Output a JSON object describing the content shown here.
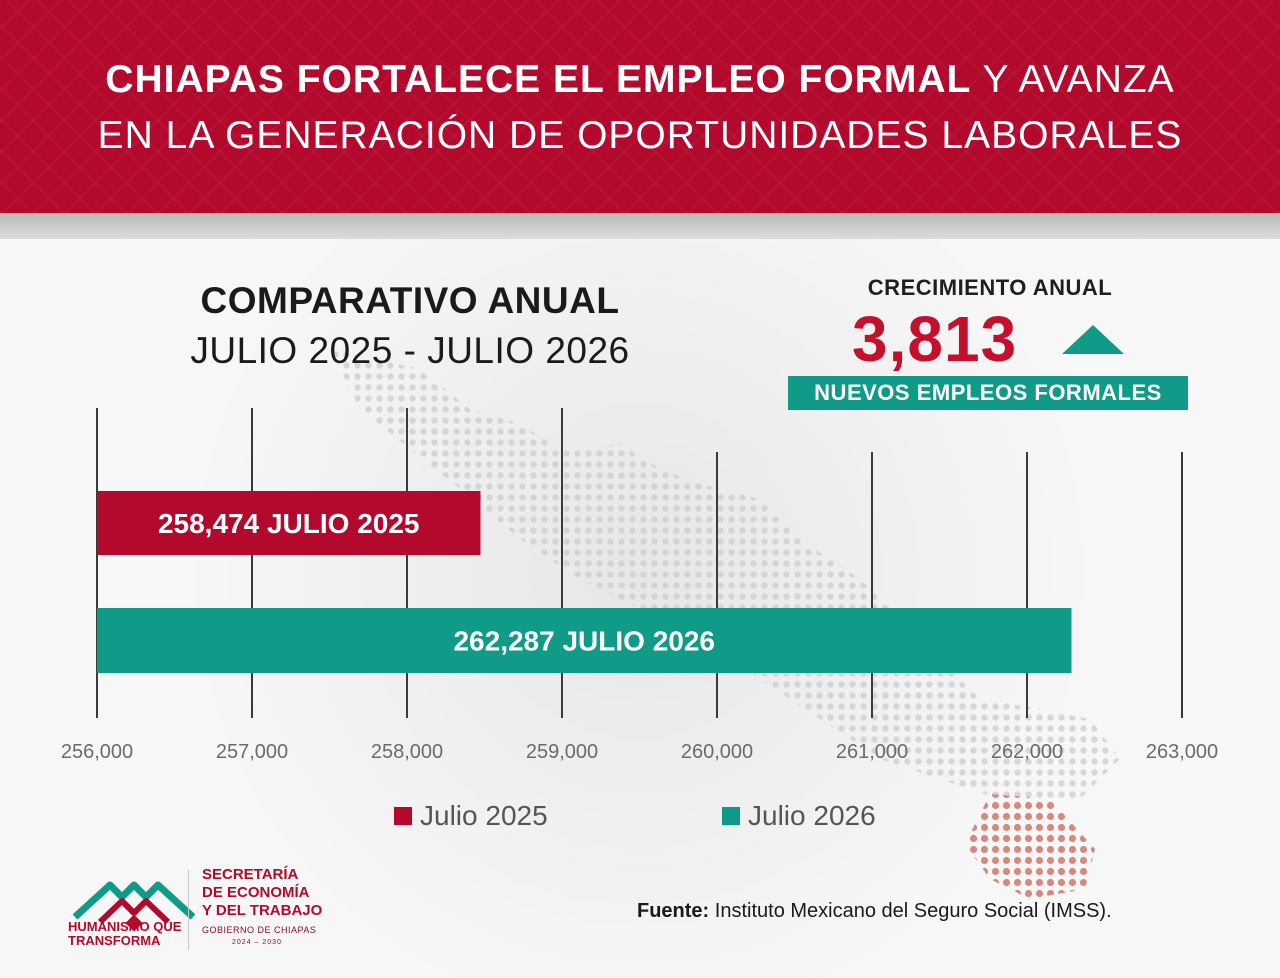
{
  "header": {
    "line1_bold": "CHIAPAS FORTALECE EL EMPLEO FORMAL",
    "line1_rest": "Y AVANZA",
    "line2": "EN LA GENERACIÓN DE OPORTUNIDADES LABORALES"
  },
  "subtitle": {
    "line1": "COMPARATIVO ANUAL",
    "line2": "JULIO 2025 - JULIO 2026"
  },
  "growth": {
    "label": "CRECIMIENTO ANUAL",
    "value": "3,813",
    "banner": "NUEVOS EMPLEOS FORMALES",
    "arrow_icon": "triangle-up-icon"
  },
  "colors": {
    "red": "#b3092c",
    "teal": "#0f9b87"
  },
  "chart_data": {
    "type": "bar",
    "orientation": "horizontal",
    "xlim": [
      256000,
      263000
    ],
    "ticks": [
      256000,
      257000,
      258000,
      259000,
      260000,
      261000,
      262000,
      263000
    ],
    "tick_labels": [
      "256,000",
      "257,000",
      "258,000",
      "259,000",
      "260,000",
      "261,000",
      "262,000",
      "263,000"
    ],
    "grid": true,
    "legend_position": "bottom",
    "bars": [
      {
        "name": "Julio 2025",
        "value": 258474,
        "label": "258,474 JULIO 2025",
        "color": "#b3092c"
      },
      {
        "name": "Julio 2026",
        "value": 262287,
        "label": "262,287 JULIO 2026",
        "color": "#0f9b87"
      }
    ]
  },
  "legend": {
    "items": [
      "Julio 2025",
      "Julio 2026"
    ]
  },
  "logos": {
    "logo1_text_line1": "HUMANISMO QUE",
    "logo1_text_line2": "TRANSFORMA",
    "logo2_line1": "SECRETARÍA",
    "logo2_line2": "DE ECONOMÍA",
    "logo2_line3": "Y DEL TRABAJO",
    "logo2_small": "GOBIERNO DE CHIAPAS",
    "logo2_years": "2024 – 2030"
  },
  "source": {
    "label": "Fuente:",
    "text": "Instituto Mexicano del Seguro Social (IMSS)."
  }
}
